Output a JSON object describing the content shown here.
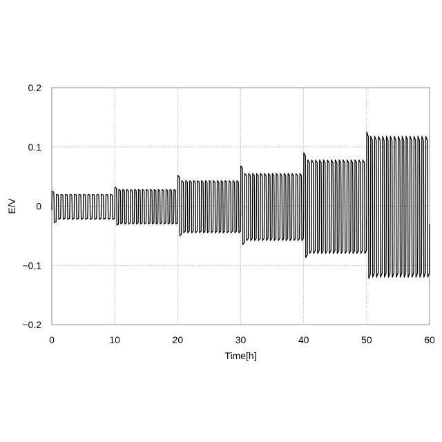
{
  "chart_data": {
    "type": "line",
    "title": "",
    "xlabel": "Time[h]",
    "ylabel": "E/V",
    "xlim": [
      0,
      60
    ],
    "ylim": [
      -0.2,
      0.2
    ],
    "x_ticks": [
      0,
      10,
      20,
      30,
      40,
      50,
      60
    ],
    "y_ticks": [
      0.2,
      0.1,
      0,
      -0.1,
      -0.2
    ],
    "x_tick_labels": [
      "0",
      "10",
      "20",
      "30",
      "40",
      "50",
      "60"
    ],
    "y_tick_labels": [
      "0.2",
      "0.1",
      "0",
      "−0.1",
      "−0.2"
    ],
    "grid": true,
    "legend": "none",
    "line_color": "#000000",
    "grid_color": "#999999",
    "segments": [
      {
        "t_start": 0,
        "t_end": 10,
        "cycles": 14,
        "first_high": 0.025,
        "first_low": -0.028,
        "high": 0.02,
        "low": -0.022
      },
      {
        "t_start": 10,
        "t_end": 20,
        "cycles": 16,
        "first_high": 0.032,
        "first_low": -0.032,
        "high": 0.028,
        "low": -0.03
      },
      {
        "t_start": 20,
        "t_end": 30,
        "cycles": 16,
        "first_high": 0.052,
        "first_low": -0.05,
        "high": 0.043,
        "low": -0.045
      },
      {
        "t_start": 30,
        "t_end": 40,
        "cycles": 16,
        "first_high": 0.068,
        "first_low": -0.065,
        "high": 0.055,
        "low": -0.058
      },
      {
        "t_start": 40,
        "t_end": 50,
        "cycles": 16,
        "first_high": 0.09,
        "first_low": -0.087,
        "high": 0.078,
        "low": -0.08
      },
      {
        "t_start": 50,
        "t_end": 60,
        "cycles": 16,
        "first_high": 0.125,
        "first_low": -0.122,
        "high": 0.118,
        "low": -0.12
      }
    ]
  }
}
